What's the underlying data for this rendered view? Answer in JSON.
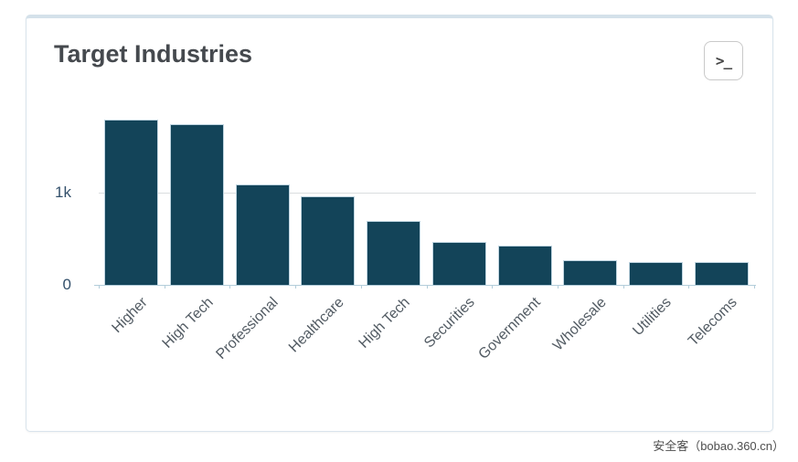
{
  "panel": {
    "title": "Target Industries",
    "terminal_button": {
      "icon": "terminal-prompt-icon",
      "glyph": ">_"
    }
  },
  "watermark": "安全客（bobao.360.cn）",
  "chart_data": {
    "type": "bar",
    "title": "Target Industries",
    "categories": [
      "Higher",
      "High Tech",
      "Professional",
      "Healthcare",
      "High Tech",
      "Securities",
      "Government",
      "Wholesale",
      "Utilities",
      "Telecoms"
    ],
    "values": [
      1790,
      1740,
      1090,
      960,
      690,
      465,
      425,
      270,
      250,
      250
    ],
    "xlabel": "",
    "ylabel": "",
    "ylim": [
      0,
      2000
    ],
    "yticks": [
      {
        "value": 0,
        "label": "0"
      },
      {
        "value": 1000,
        "label": "1k"
      }
    ],
    "gridlines": [
      1000
    ],
    "legend": "none",
    "grid": "single horizontal gridline at 1k",
    "x_label_rotation_deg": -45,
    "bar_color": "#134459",
    "bar_border_color": "#bed4e0",
    "axis_color": "#b3cdda",
    "gridline_color": "#dadddf",
    "tick_label_color": "#33506b",
    "x_label_color": "#525b63"
  }
}
